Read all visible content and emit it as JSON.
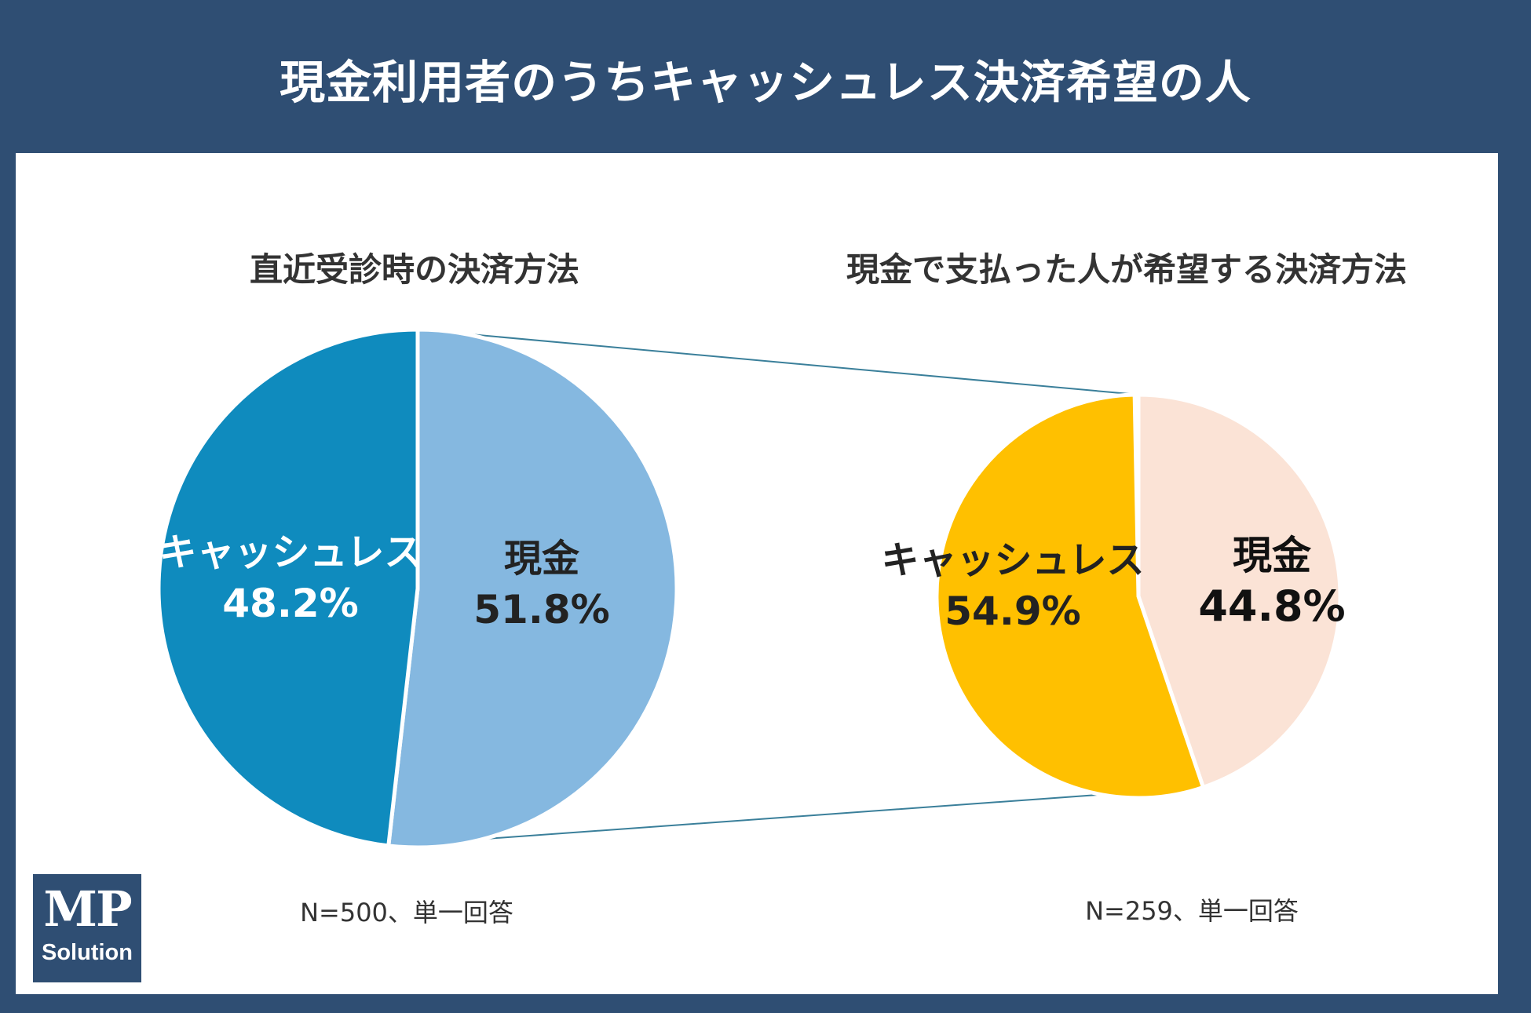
{
  "title": "現金利用者のうちキャッシュレス決済希望の人",
  "chart_data": [
    {
      "type": "pie",
      "title": "直近受診時の決済方法",
      "note": "N=500、単一回答",
      "slices": [
        {
          "label": "現金",
          "value": 51.8,
          "display": "51.8%",
          "color": "#85b8e0",
          "text_color": "#222222"
        },
        {
          "label": "キャッシュレス",
          "value": 48.2,
          "display": "48.2%",
          "color": "#0f8bbe",
          "text_color": "#ffffff"
        }
      ]
    },
    {
      "type": "pie",
      "title": "現金で支払った人が希望する決済方法",
      "note": "N=259、単一回答",
      "slices": [
        {
          "label": "現金",
          "value": 44.8,
          "display": "44.8%",
          "color": "#fbe3d6",
          "text_color": "#111111"
        },
        {
          "label": "キャッシュレス",
          "value": 54.9,
          "display": "54.9%",
          "color": "#ffc000",
          "text_color": "#222222"
        }
      ]
    }
  ],
  "connector_color": "#3a7f9a",
  "logo": {
    "mark": "MP",
    "text": "Solution"
  }
}
